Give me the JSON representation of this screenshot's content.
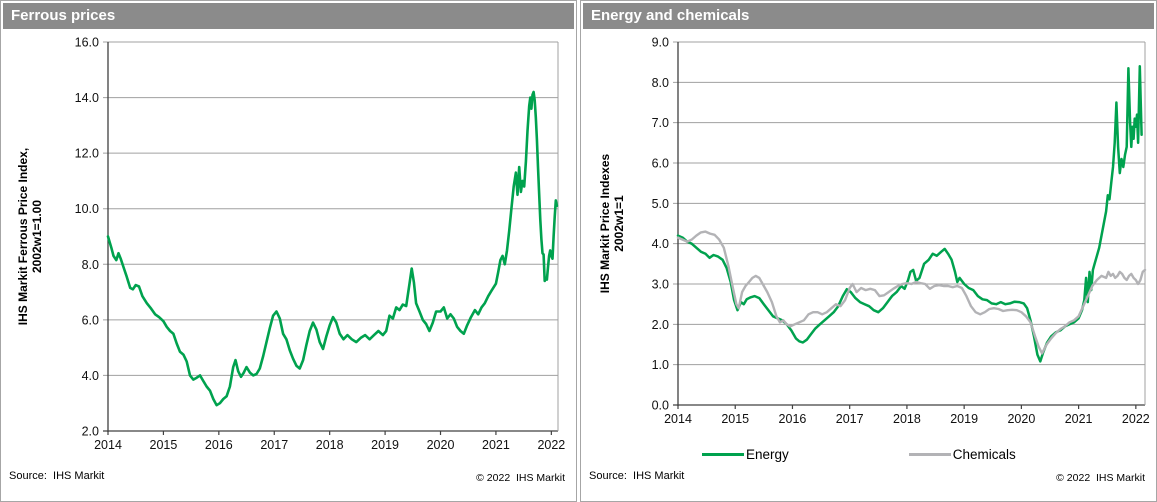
{
  "footer": {
    "source": "Source:  IHS Markit",
    "copyright": "© 2022  IHS Markit"
  },
  "colors": {
    "header_bg": "#8b8b8b",
    "green": "#00a24e",
    "gray_line": "#b3b3b6",
    "grid": "#a0a0a0",
    "axis": "#404040"
  },
  "chart_data": [
    {
      "type": "line",
      "title": "Ferrous prices",
      "ylabel": [
        "IHS Markit Ferrous Price Index,",
        "2002w1=1.00"
      ],
      "xlabel": "",
      "ylim": [
        2.0,
        16.0
      ],
      "ytick_step": 2.0,
      "ytick_decimals": 1,
      "xlim": [
        2014,
        2022.12
      ],
      "xticks": [
        2014,
        2015,
        2016,
        2017,
        2018,
        2019,
        2020,
        2021,
        2022
      ],
      "grid": "horizontal",
      "legend_position": "none",
      "series": [
        {
          "name": "Ferrous",
          "color": "#00a24e",
          "width": 2.6,
          "x": [
            2014.0,
            2014.06,
            2014.1,
            2014.15,
            2014.19,
            2014.23,
            2014.28,
            2014.33,
            2014.4,
            2014.45,
            2014.5,
            2014.56,
            2014.62,
            2014.7,
            2014.78,
            2014.85,
            2014.92,
            2015.0,
            2015.06,
            2015.12,
            2015.18,
            2015.24,
            2015.3,
            2015.36,
            2015.42,
            2015.48,
            2015.54,
            2015.6,
            2015.66,
            2015.72,
            2015.78,
            2015.84,
            2015.9,
            2015.96,
            2016.02,
            2016.08,
            2016.14,
            2016.2,
            2016.26,
            2016.3,
            2016.35,
            2016.4,
            2016.45,
            2016.5,
            2016.56,
            2016.62,
            2016.68,
            2016.74,
            2016.8,
            2016.86,
            2016.92,
            2016.98,
            2017.04,
            2017.1,
            2017.16,
            2017.22,
            2017.28,
            2017.34,
            2017.4,
            2017.46,
            2017.52,
            2017.58,
            2017.64,
            2017.7,
            2017.76,
            2017.82,
            2017.88,
            2017.94,
            2018.0,
            2018.06,
            2018.12,
            2018.18,
            2018.25,
            2018.32,
            2018.4,
            2018.48,
            2018.56,
            2018.64,
            2018.72,
            2018.8,
            2018.88,
            2018.96,
            2019.02,
            2019.08,
            2019.14,
            2019.2,
            2019.26,
            2019.32,
            2019.38,
            2019.44,
            2019.48,
            2019.52,
            2019.56,
            2019.62,
            2019.68,
            2019.74,
            2019.8,
            2019.86,
            2019.92,
            2020.0,
            2020.06,
            2020.12,
            2020.18,
            2020.24,
            2020.3,
            2020.36,
            2020.42,
            2020.48,
            2020.55,
            2020.62,
            2020.68,
            2020.74,
            2020.8,
            2020.86,
            2020.92,
            2021.0,
            2021.04,
            2021.08,
            2021.12,
            2021.16,
            2021.2,
            2021.24,
            2021.28,
            2021.32,
            2021.36,
            2021.39,
            2021.42,
            2021.45,
            2021.48,
            2021.51,
            2021.54,
            2021.57,
            2021.6,
            2021.62,
            2021.64,
            2021.66,
            2021.68,
            2021.7,
            2021.72,
            2021.74,
            2021.76,
            2021.78,
            2021.8,
            2021.82,
            2021.84,
            2021.86,
            2021.88,
            2021.9,
            2021.92,
            2021.94,
            2021.96,
            2021.98,
            2022.0,
            2022.02,
            2022.04,
            2022.06,
            2022.08,
            2022.1
          ],
          "values": [
            9.0,
            8.6,
            8.3,
            8.15,
            8.4,
            8.2,
            7.9,
            7.6,
            7.15,
            7.1,
            7.25,
            7.2,
            6.85,
            6.6,
            6.4,
            6.2,
            6.1,
            5.95,
            5.75,
            5.6,
            5.5,
            5.15,
            4.85,
            4.75,
            4.5,
            4.0,
            3.85,
            3.92,
            4.0,
            3.8,
            3.6,
            3.45,
            3.15,
            2.93,
            3.0,
            3.15,
            3.25,
            3.6,
            4.3,
            4.55,
            4.15,
            3.95,
            4.1,
            4.3,
            4.1,
            4.0,
            4.05,
            4.25,
            4.7,
            5.2,
            5.7,
            6.15,
            6.3,
            6.05,
            5.5,
            5.3,
            4.9,
            4.6,
            4.35,
            4.25,
            4.55,
            5.1,
            5.6,
            5.9,
            5.65,
            5.2,
            4.95,
            5.4,
            5.8,
            6.1,
            5.9,
            5.5,
            5.3,
            5.45,
            5.3,
            5.2,
            5.35,
            5.45,
            5.3,
            5.45,
            5.6,
            5.45,
            5.6,
            6.15,
            6.05,
            6.45,
            6.35,
            6.55,
            6.5,
            7.3,
            7.85,
            7.35,
            6.6,
            6.3,
            6.0,
            5.85,
            5.6,
            5.9,
            6.3,
            6.3,
            6.45,
            6.05,
            6.2,
            6.05,
            5.75,
            5.6,
            5.5,
            5.8,
            6.1,
            6.35,
            6.2,
            6.45,
            6.6,
            6.85,
            7.05,
            7.3,
            7.7,
            8.15,
            8.3,
            8.0,
            8.5,
            9.2,
            10.0,
            10.8,
            11.3,
            10.5,
            11.5,
            10.6,
            11.0,
            10.8,
            11.7,
            12.8,
            13.7,
            14.0,
            13.6,
            14.1,
            14.2,
            13.9,
            13.3,
            12.5,
            11.5,
            10.5,
            9.6,
            8.9,
            8.4,
            8.35,
            7.4,
            7.5,
            7.45,
            7.9,
            8.3,
            8.5,
            8.3,
            8.2,
            9.0,
            9.7,
            10.3,
            10.1
          ]
        }
      ]
    },
    {
      "type": "line",
      "title": "Energy and chemicals",
      "ylabel": [
        "IHS Markit Price Indexes",
        "2002w1=1"
      ],
      "xlabel": "",
      "ylim": [
        0.0,
        9.0
      ],
      "ytick_step": 1.0,
      "ytick_decimals": 1,
      "xlim": [
        2014,
        2022.16
      ],
      "xticks": [
        2014,
        2015,
        2016,
        2017,
        2018,
        2019,
        2020,
        2021,
        2022
      ],
      "grid": "horizontal",
      "legend_position": "bottom",
      "series": [
        {
          "name": "Energy",
          "color": "#00a24e",
          "width": 2.5,
          "x": [
            2014.0,
            2014.08,
            2014.16,
            2014.24,
            2014.32,
            2014.4,
            2014.48,
            2014.55,
            2014.62,
            2014.7,
            2014.78,
            2014.85,
            2014.92,
            2014.98,
            2015.04,
            2015.1,
            2015.15,
            2015.2,
            2015.27,
            2015.34,
            2015.42,
            2015.5,
            2015.58,
            2015.66,
            2015.74,
            2015.82,
            2015.9,
            2015.98,
            2016.06,
            2016.12,
            2016.18,
            2016.25,
            2016.32,
            2016.4,
            2016.48,
            2016.56,
            2016.64,
            2016.72,
            2016.8,
            2016.88,
            2016.95,
            2017.02,
            2017.1,
            2017.18,
            2017.26,
            2017.34,
            2017.42,
            2017.5,
            2017.58,
            2017.66,
            2017.74,
            2017.82,
            2017.9,
            2017.96,
            2018.02,
            2018.06,
            2018.11,
            2018.16,
            2018.22,
            2018.3,
            2018.38,
            2018.45,
            2018.52,
            2018.6,
            2018.66,
            2018.72,
            2018.78,
            2018.84,
            2018.88,
            2018.92,
            2019.0,
            2019.08,
            2019.16,
            2019.24,
            2019.32,
            2019.4,
            2019.48,
            2019.56,
            2019.64,
            2019.72,
            2019.8,
            2019.88,
            2019.96,
            2020.04,
            2020.1,
            2020.16,
            2020.22,
            2020.28,
            2020.33,
            2020.38,
            2020.45,
            2020.52,
            2020.6,
            2020.68,
            2020.76,
            2020.84,
            2020.92,
            2021.0,
            2021.06,
            2021.1,
            2021.13,
            2021.16,
            2021.19,
            2021.22,
            2021.25,
            2021.28,
            2021.32,
            2021.36,
            2021.4,
            2021.44,
            2021.48,
            2021.51,
            2021.54,
            2021.57,
            2021.6,
            2021.63,
            2021.66,
            2021.69,
            2021.72,
            2021.75,
            2021.78,
            2021.81,
            2021.84,
            2021.87,
            2021.9,
            2021.92,
            2021.94,
            2021.96,
            2021.98,
            2022.0,
            2022.02,
            2022.04,
            2022.07,
            2022.1
          ],
          "values": [
            4.2,
            4.15,
            4.05,
            4.0,
            3.9,
            3.8,
            3.75,
            3.65,
            3.72,
            3.68,
            3.6,
            3.4,
            3.05,
            2.6,
            2.35,
            2.55,
            2.5,
            2.62,
            2.67,
            2.7,
            2.65,
            2.5,
            2.35,
            2.2,
            2.15,
            2.1,
            2.0,
            1.85,
            1.65,
            1.58,
            1.55,
            1.62,
            1.75,
            1.9,
            2.0,
            2.1,
            2.2,
            2.3,
            2.45,
            2.7,
            2.87,
            2.8,
            2.65,
            2.55,
            2.5,
            2.45,
            2.35,
            2.3,
            2.4,
            2.55,
            2.7,
            2.8,
            2.95,
            2.88,
            3.1,
            3.3,
            3.35,
            3.08,
            3.15,
            3.5,
            3.6,
            3.75,
            3.7,
            3.8,
            3.87,
            3.75,
            3.6,
            3.3,
            3.05,
            3.15,
            3.0,
            2.9,
            2.85,
            2.7,
            2.62,
            2.6,
            2.52,
            2.5,
            2.55,
            2.5,
            2.52,
            2.56,
            2.55,
            2.52,
            2.4,
            2.1,
            1.7,
            1.25,
            1.08,
            1.3,
            1.55,
            1.7,
            1.8,
            1.85,
            1.95,
            2.0,
            2.05,
            2.15,
            2.35,
            2.6,
            3.15,
            2.55,
            3.3,
            2.85,
            3.35,
            3.5,
            3.7,
            3.9,
            4.2,
            4.5,
            4.8,
            5.2,
            5.1,
            5.5,
            5.9,
            6.5,
            7.5,
            6.4,
            5.75,
            6.1,
            5.9,
            6.2,
            6.4,
            8.35,
            7.0,
            6.4,
            6.9,
            6.6,
            7.1,
            6.9,
            7.2,
            6.5,
            8.4,
            6.7
          ]
        },
        {
          "name": "Chemicals",
          "color": "#b3b3b6",
          "width": 2.4,
          "x": [
            2014.0,
            2014.08,
            2014.16,
            2014.24,
            2014.32,
            2014.4,
            2014.48,
            2014.56,
            2014.64,
            2014.72,
            2014.8,
            2014.88,
            2014.96,
            2015.02,
            2015.06,
            2015.12,
            2015.18,
            2015.24,
            2015.3,
            2015.36,
            2015.42,
            2015.48,
            2015.56,
            2015.64,
            2015.72,
            2015.78,
            2015.84,
            2015.9,
            2015.96,
            2016.04,
            2016.12,
            2016.2,
            2016.28,
            2016.36,
            2016.44,
            2016.52,
            2016.6,
            2016.68,
            2016.76,
            2016.84,
            2016.92,
            2017.0,
            2017.05,
            2017.12,
            2017.2,
            2017.28,
            2017.36,
            2017.44,
            2017.52,
            2017.6,
            2017.68,
            2017.76,
            2017.84,
            2017.92,
            2018.0,
            2018.08,
            2018.16,
            2018.24,
            2018.32,
            2018.4,
            2018.48,
            2018.56,
            2018.64,
            2018.72,
            2018.8,
            2018.88,
            2018.96,
            2019.04,
            2019.12,
            2019.2,
            2019.28,
            2019.36,
            2019.44,
            2019.52,
            2019.6,
            2019.68,
            2019.76,
            2019.84,
            2019.92,
            2020.0,
            2020.08,
            2020.16,
            2020.24,
            2020.3,
            2020.36,
            2020.44,
            2020.52,
            2020.6,
            2020.68,
            2020.76,
            2020.84,
            2020.92,
            2021.0,
            2021.08,
            2021.16,
            2021.24,
            2021.32,
            2021.4,
            2021.48,
            2021.52,
            2021.56,
            2021.6,
            2021.64,
            2021.68,
            2021.72,
            2021.76,
            2021.8,
            2021.84,
            2021.88,
            2021.92,
            2021.96,
            2022.0,
            2022.04,
            2022.08,
            2022.12,
            2022.16
          ],
          "values": [
            4.15,
            4.1,
            4.05,
            4.1,
            4.2,
            4.28,
            4.3,
            4.25,
            4.22,
            4.1,
            3.9,
            3.45,
            2.9,
            2.5,
            2.4,
            2.8,
            2.95,
            3.05,
            3.15,
            3.2,
            3.15,
            3.0,
            2.8,
            2.55,
            2.2,
            2.05,
            2.1,
            2.0,
            1.95,
            2.0,
            2.05,
            2.1,
            2.25,
            2.3,
            2.3,
            2.25,
            2.3,
            2.4,
            2.5,
            2.45,
            2.6,
            2.9,
            3.0,
            2.8,
            2.9,
            2.85,
            2.88,
            2.85,
            2.7,
            2.72,
            2.8,
            2.88,
            2.95,
            3.0,
            3.02,
            3.0,
            3.05,
            3.02,
            3.0,
            2.88,
            2.95,
            2.97,
            2.95,
            2.95,
            2.92,
            2.95,
            2.9,
            2.7,
            2.45,
            2.3,
            2.25,
            2.3,
            2.38,
            2.4,
            2.38,
            2.33,
            2.35,
            2.36,
            2.35,
            2.3,
            2.2,
            2.05,
            1.7,
            1.45,
            1.28,
            1.5,
            1.65,
            1.78,
            1.88,
            1.95,
            2.05,
            2.1,
            2.2,
            2.45,
            2.7,
            2.95,
            3.1,
            3.2,
            3.15,
            3.3,
            3.2,
            3.25,
            3.15,
            3.2,
            3.3,
            3.25,
            3.15,
            3.1,
            3.2,
            3.25,
            3.15,
            3.1,
            3.0,
            3.1,
            3.3,
            3.35
          ]
        }
      ]
    }
  ]
}
